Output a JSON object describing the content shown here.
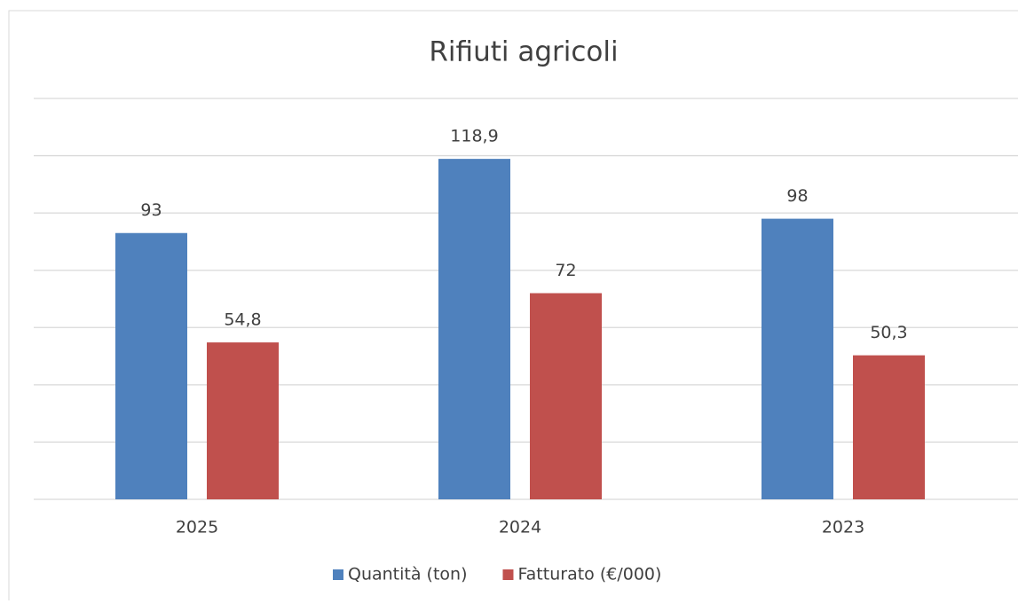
{
  "chart_data": {
    "type": "bar",
    "title": "Rifiuti agricoli",
    "categories": [
      "2025",
      "2024",
      "2023"
    ],
    "series": [
      {
        "name": "Quantità (ton)",
        "color": "#4f81bd",
        "values": [
          93,
          118.9,
          98
        ],
        "value_labels": [
          "93",
          "118,9",
          "98"
        ]
      },
      {
        "name": "Fatturato (€/000)",
        "color": "#c0504d",
        "values": [
          54.8,
          72,
          50.3
        ],
        "value_labels": [
          "54,8",
          "72",
          "50,3"
        ]
      }
    ],
    "ylim": [
      0,
      140
    ],
    "yticks": [
      0,
      20,
      40,
      60,
      80,
      100,
      120,
      140
    ],
    "grid": true,
    "legend": "bottom"
  }
}
